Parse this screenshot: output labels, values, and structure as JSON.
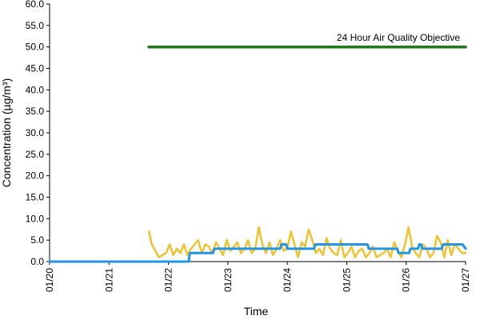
{
  "chart_data": {
    "type": "line",
    "xlabel": "Time",
    "ylabel": "Concentration (µg/m³)",
    "x_tick_labels": [
      "01/20",
      "01/21",
      "01/22",
      "01/23",
      "01/24",
      "01/25",
      "01/26",
      "01/27"
    ],
    "y_tick_labels": [
      "0.0",
      "5.0",
      "10.0",
      "15.0",
      "20.0",
      "25.0",
      "30.0",
      "35.0",
      "40.0",
      "45.0",
      "50.0",
      "55.0",
      "60.0"
    ],
    "xlim": [
      0,
      7
    ],
    "ylim": [
      0,
      60
    ],
    "grid": false,
    "annotations": [
      {
        "text": "24 Hour Air Quality Objective"
      }
    ],
    "colors": {
      "objective": "#1a7a1a",
      "series_yellow": "#f2c12e",
      "series_blue": "#2196e6"
    },
    "series": [
      {
        "color": "#1a7a1a",
        "x": [
          1.67,
          7.0
        ],
        "y": [
          50.0,
          50.0
        ]
      },
      {
        "color": "#f2c12e",
        "x": [
          1.67,
          1.72,
          1.78,
          1.84,
          1.9,
          1.96,
          2.02,
          2.08,
          2.14,
          2.2,
          2.26,
          2.32,
          2.38,
          2.44,
          2.5,
          2.56,
          2.62,
          2.68,
          2.74,
          2.8,
          2.86,
          2.92,
          2.98,
          3.04,
          3.1,
          3.16,
          3.22,
          3.28,
          3.34,
          3.4,
          3.46,
          3.52,
          3.58,
          3.64,
          3.7,
          3.76,
          3.82,
          3.88,
          3.94,
          4.0,
          4.06,
          4.12,
          4.18,
          4.24,
          4.3,
          4.36,
          4.42,
          4.48,
          4.54,
          4.6,
          4.66,
          4.72,
          4.78,
          4.84,
          4.9,
          4.96,
          5.02,
          5.08,
          5.14,
          5.2,
          5.26,
          5.32,
          5.38,
          5.44,
          5.5,
          5.56,
          5.62,
          5.68,
          5.74,
          5.8,
          5.86,
          5.92,
          5.98,
          6.04,
          6.1,
          6.16,
          6.22,
          6.28,
          6.34,
          6.4,
          6.46,
          6.52,
          6.58,
          6.64,
          6.7,
          6.76,
          6.82,
          6.88,
          6.94,
          7.0
        ],
        "y": [
          7.0,
          4.0,
          2.5,
          1.0,
          1.5,
          2.0,
          4.0,
          1.5,
          3.0,
          2.0,
          4.0,
          1.5,
          3.0,
          4.0,
          5.0,
          2.0,
          4.0,
          3.5,
          2.0,
          4.5,
          3.0,
          1.5,
          5.0,
          2.5,
          3.5,
          4.5,
          2.0,
          3.0,
          5.0,
          2.0,
          3.0,
          8.0,
          4.0,
          2.0,
          4.5,
          1.5,
          3.0,
          5.0,
          2.5,
          3.0,
          7.0,
          4.0,
          1.0,
          4.5,
          3.5,
          7.5,
          5.0,
          2.0,
          3.0,
          1.5,
          5.5,
          3.0,
          2.0,
          1.5,
          5.0,
          1.0,
          2.0,
          3.5,
          1.0,
          2.5,
          3.0,
          1.0,
          2.0,
          3.5,
          1.0,
          1.5,
          2.0,
          3.0,
          1.0,
          4.5,
          2.5,
          1.0,
          4.0,
          8.0,
          3.5,
          2.0,
          1.0,
          4.0,
          3.0,
          1.0,
          2.0,
          6.0,
          4.5,
          1.0,
          5.0,
          1.5,
          4.0,
          3.0,
          2.0,
          2.0
        ]
      },
      {
        "color": "#2196e6",
        "x": [
          0.0,
          2.34,
          2.36,
          2.75,
          2.77,
          3.88,
          3.9,
          3.98,
          4.0,
          4.2,
          4.22,
          4.45,
          4.47,
          5.35,
          5.37,
          5.6,
          5.62,
          5.85,
          5.87,
          6.05,
          6.07,
          6.12,
          6.14,
          6.2,
          6.22,
          6.25,
          6.27,
          6.6,
          6.62,
          6.95,
          7.0
        ],
        "y": [
          0.0,
          0.0,
          2.0,
          2.0,
          3.0,
          3.0,
          4.0,
          4.0,
          3.0,
          3.0,
          3.0,
          3.0,
          4.0,
          4.0,
          3.0,
          3.0,
          3.0,
          3.0,
          2.0,
          2.0,
          3.0,
          3.0,
          3.0,
          3.0,
          4.0,
          4.0,
          3.0,
          3.0,
          4.0,
          4.0,
          3.0
        ]
      }
    ]
  }
}
